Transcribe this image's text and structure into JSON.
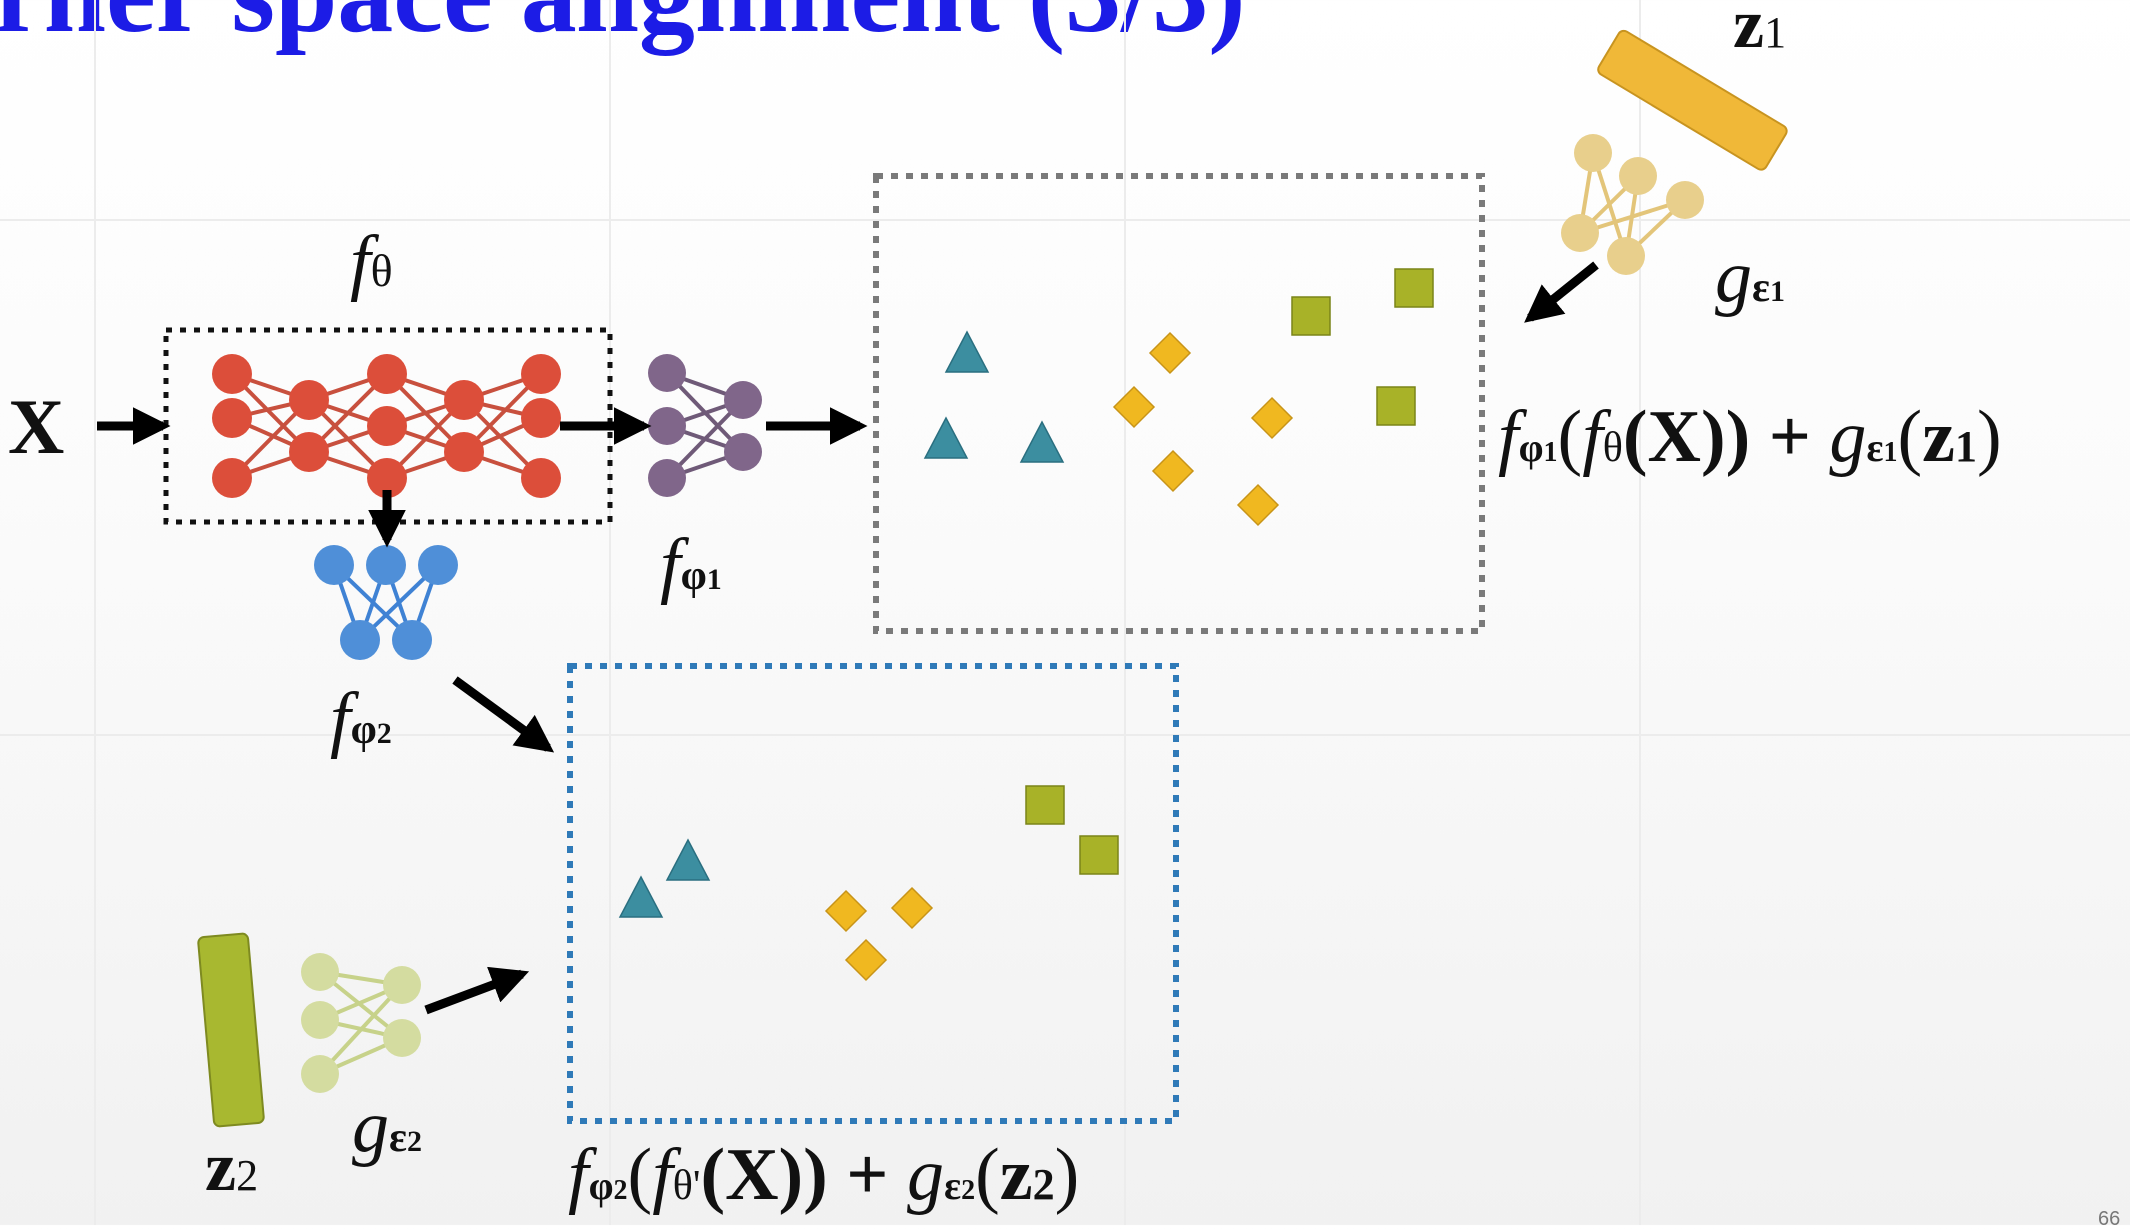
{
  "slide": {
    "title": "rner space alignment (3/3)",
    "page_number": "66"
  },
  "labels": {
    "x_input": "X",
    "f_theta": {
      "base": "f",
      "sub": "θ"
    },
    "f_phi1": {
      "base": "f",
      "sub": "φ",
      "subsub": "1"
    },
    "f_phi2": {
      "base": "f",
      "sub": "φ",
      "subsub": "2"
    },
    "g_eps1": {
      "base": "g",
      "sub": "ε",
      "subsub": "1"
    },
    "g_eps2": {
      "base": "g",
      "sub": "ε",
      "subsub": "2"
    },
    "z1": {
      "base": "z",
      "sub": "1"
    },
    "z2": {
      "base": "z",
      "sub": "2"
    }
  },
  "formulas": {
    "top": {
      "f": "f",
      "phi": "φ",
      "phi_sub": "1",
      "open1": "(",
      "f2": "f",
      "theta": "θ",
      "inner": "(X)) + ",
      "g": "g",
      "eps": "ε",
      "eps_sub": "1",
      "z_open": "(",
      "z": "z",
      "z_sub": "1",
      "close": ")"
    },
    "bottom": {
      "f": "f",
      "phi": "φ",
      "phi_sub": "2",
      "open1": "(",
      "f2": "f",
      "theta": "θ'",
      "inner": "(X)) + ",
      "g": "g",
      "eps": "ε",
      "eps_sub": "2",
      "z_open": "(",
      "z": "z",
      "z_sub": "2",
      "close": ")"
    }
  },
  "colors": {
    "title": "#1c1ce6",
    "encoder_red": "#dc4e3a",
    "head_purple": "#80668a",
    "head_blue": "#4f8fd8",
    "triangle_teal": "#3c8ea0",
    "diamond_yellow": "#f0b820",
    "square_olive": "#a8b228",
    "z1_bar": "#f0b838",
    "z2_bar": "#a8b830",
    "g1_net": "#e8cf8c",
    "g2_net": "#d4dca0",
    "box_gray": "#7a7a7a",
    "box_blue": "#2f7ab8"
  }
}
